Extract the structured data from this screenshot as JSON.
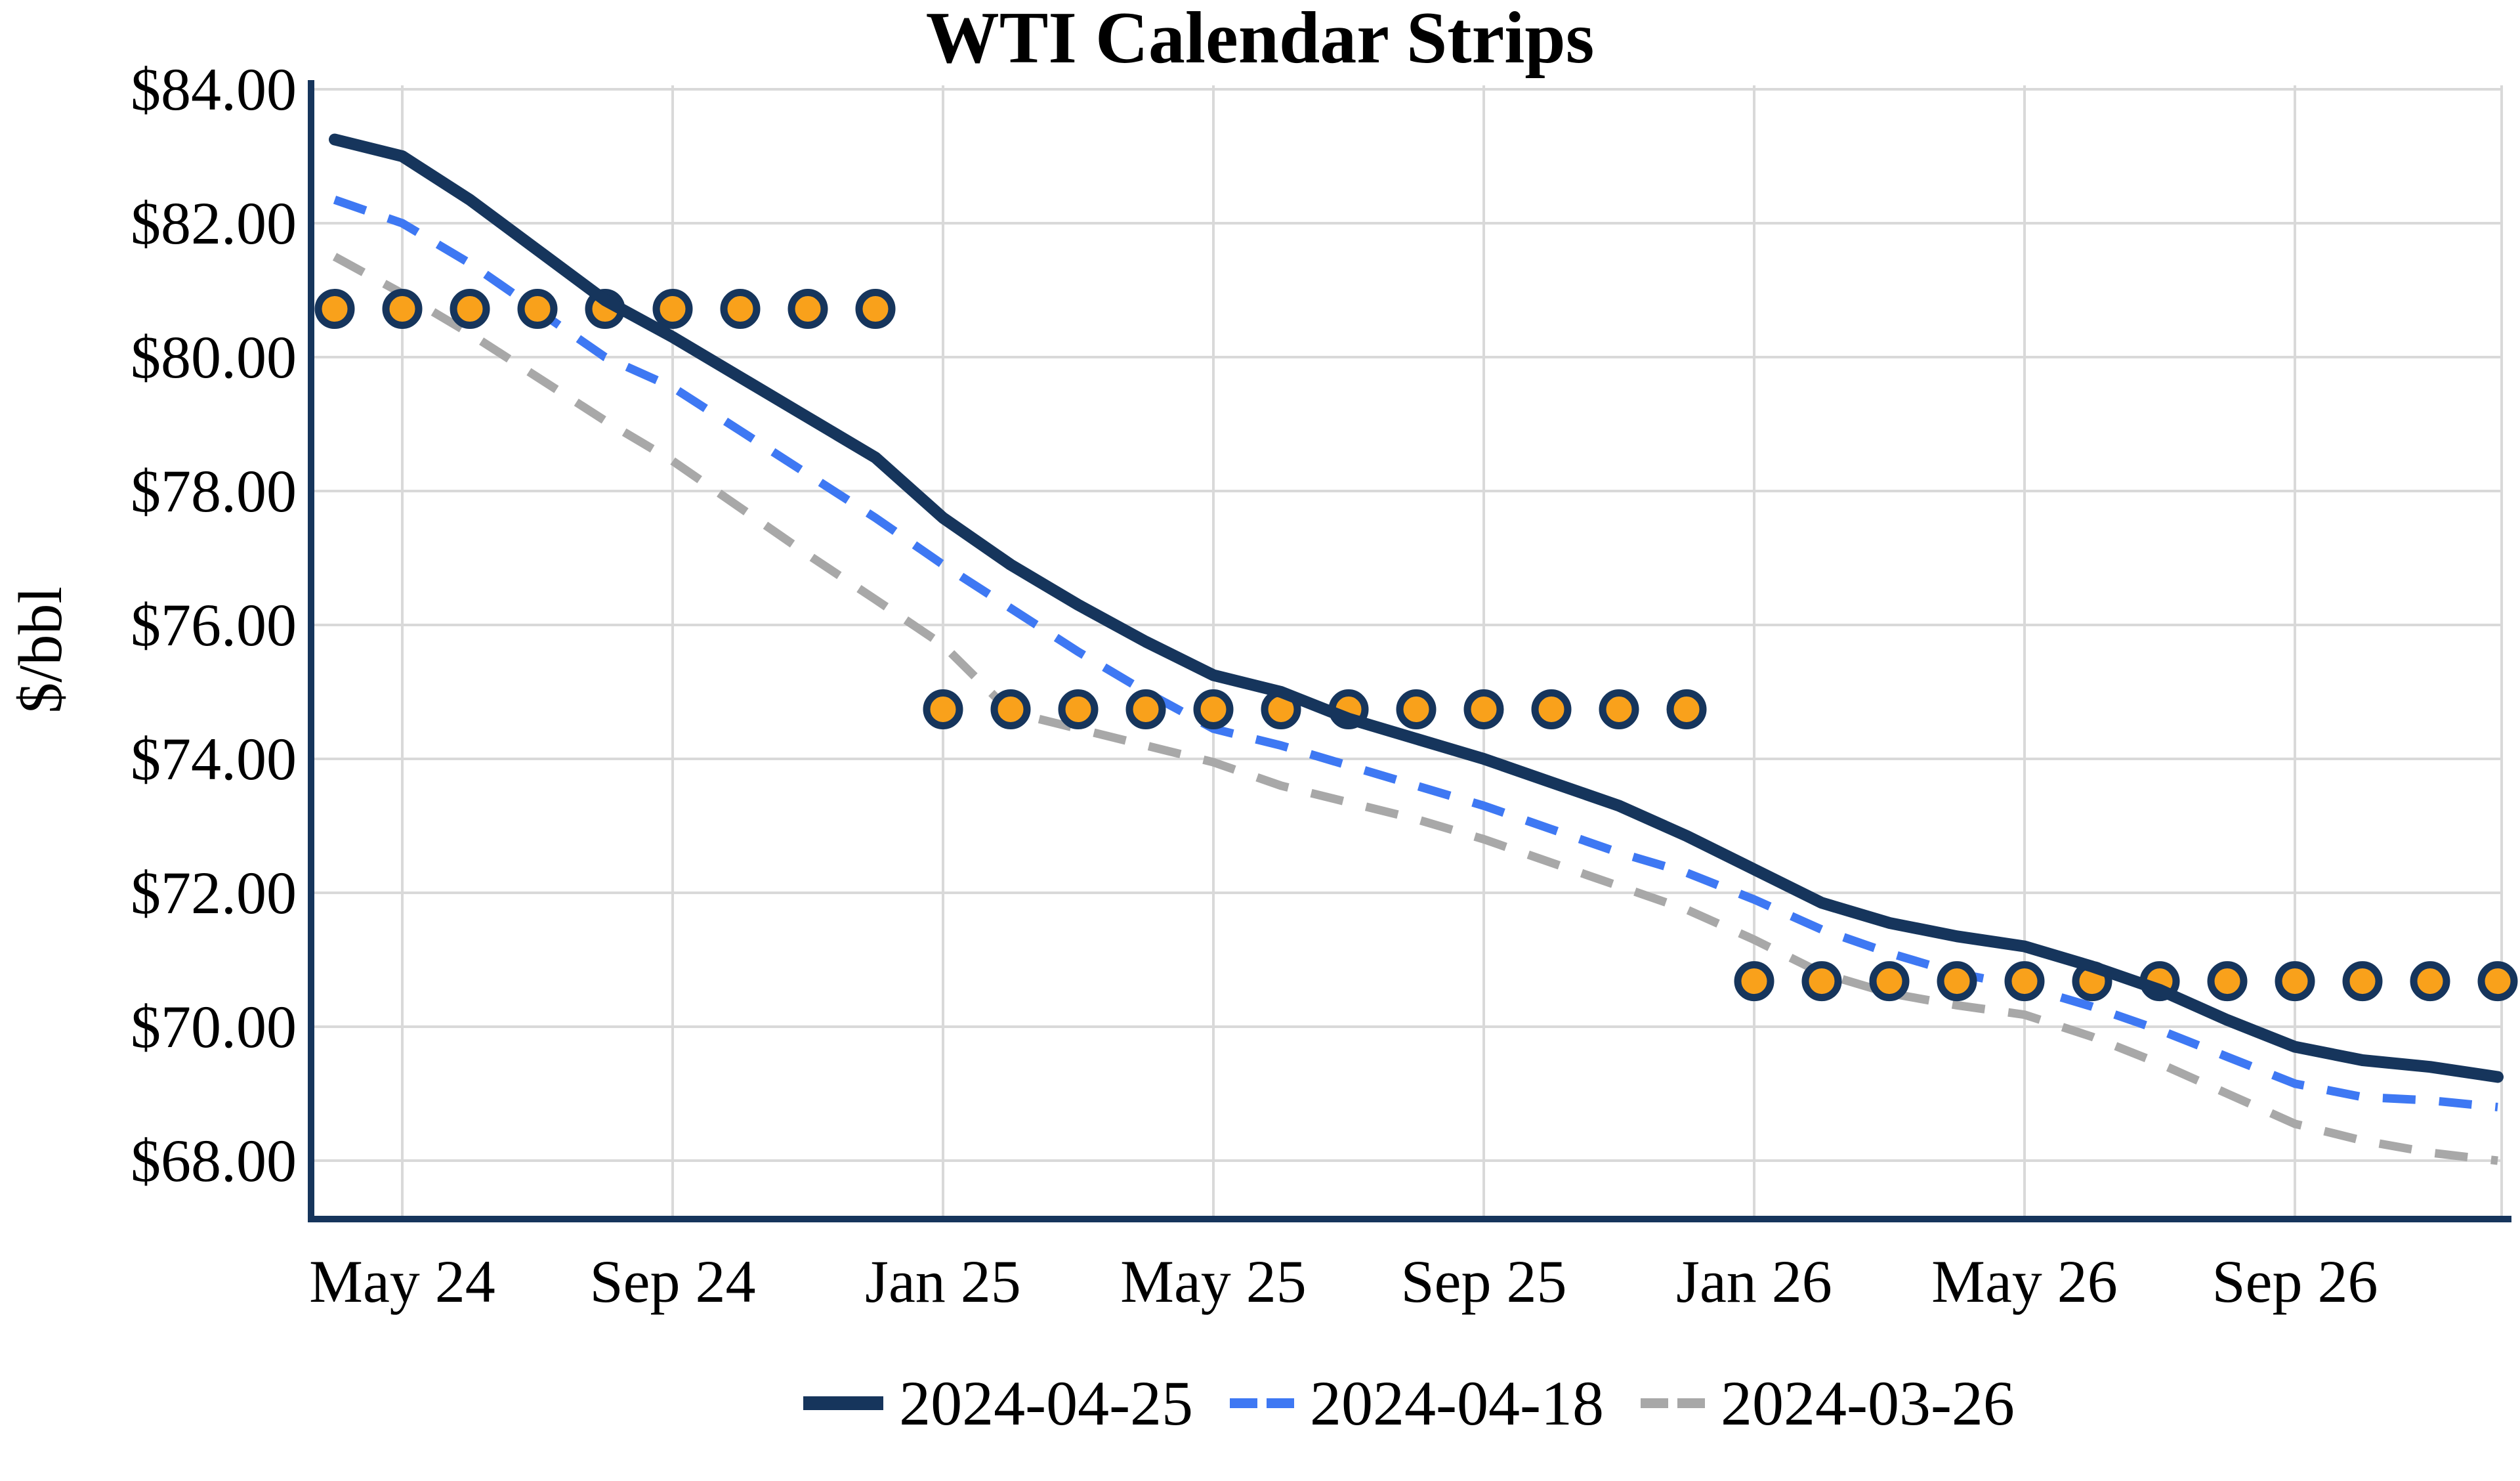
{
  "title": "WTI Calendar Strips",
  "chart_data": {
    "type": "line",
    "title": "WTI Calendar Strips",
    "xlabel": "",
    "ylabel": "$/bbl",
    "ylim": [
      67.2,
      84.3
    ],
    "grid": true,
    "legend_position": "bottom",
    "yticks": [
      84,
      82,
      80,
      78,
      76,
      74,
      72,
      70,
      68
    ],
    "ytick_labels": [
      "$84.00",
      "$82.00",
      "$80.00",
      "$78.00",
      "$76.00",
      "$74.00",
      "$72.00",
      "$70.00",
      "$68.00"
    ],
    "x_months_count": 33,
    "xtick_positions": [
      1,
      5,
      9,
      13,
      17,
      21,
      25,
      29
    ],
    "xtick_labels": [
      "May 24",
      "Sep 24",
      "Jan 25",
      "May 25",
      "Sep 25",
      "Jan 26",
      "May 26",
      "Sep 26"
    ],
    "series": [
      {
        "name": "2024-04-25",
        "style": "solid",
        "color": "#16355C",
        "width": 18,
        "values": [
          83.25,
          83.0,
          82.35,
          81.6,
          80.85,
          80.3,
          79.7,
          79.1,
          78.5,
          77.6,
          76.9,
          76.3,
          75.75,
          75.25,
          75.0,
          74.6,
          74.3,
          74.0,
          73.65,
          73.3,
          72.85,
          72.35,
          71.85,
          71.55,
          71.35,
          71.2,
          70.9,
          70.55,
          70.1,
          69.7,
          69.5,
          69.4,
          69.25
        ]
      },
      {
        "name": "2024-04-18",
        "style": "dashed",
        "color": "#3E78F3",
        "width": 13,
        "values": [
          82.35,
          82.0,
          81.4,
          80.7,
          80.0,
          79.55,
          78.9,
          78.25,
          77.6,
          76.9,
          76.25,
          75.6,
          75.0,
          74.45,
          74.2,
          73.9,
          73.6,
          73.3,
          72.95,
          72.6,
          72.3,
          71.9,
          71.45,
          71.1,
          70.8,
          70.6,
          70.3,
          69.95,
          69.55,
          69.15,
          68.95,
          68.9,
          68.8
        ]
      },
      {
        "name": "2024-03-26",
        "style": "dashed",
        "color": "#A8A8A8",
        "width": 13,
        "values": [
          81.5,
          80.95,
          80.35,
          79.7,
          79.05,
          78.45,
          77.75,
          77.05,
          76.38,
          75.7,
          74.7,
          74.45,
          74.2,
          73.95,
          73.6,
          73.35,
          73.1,
          72.8,
          72.45,
          72.1,
          71.75,
          71.3,
          70.8,
          70.5,
          70.32,
          70.18,
          69.85,
          69.45,
          69.0,
          68.55,
          68.3,
          68.12,
          68.0
        ]
      }
    ],
    "strip_markers": {
      "marker": "circle",
      "fill_color": "#F9A11B",
      "edge_color": "#16355C",
      "groups": [
        {
          "start_month": 0,
          "end_month": 8,
          "value": 80.72
        },
        {
          "start_month": 9,
          "end_month": 20,
          "value": 74.74
        },
        {
          "start_month": 21,
          "end_month": 32,
          "value": 70.68
        }
      ]
    },
    "colors": {
      "gridline": "#D9D9D9",
      "axis_spine": "#16355C",
      "text": "#000000"
    }
  }
}
